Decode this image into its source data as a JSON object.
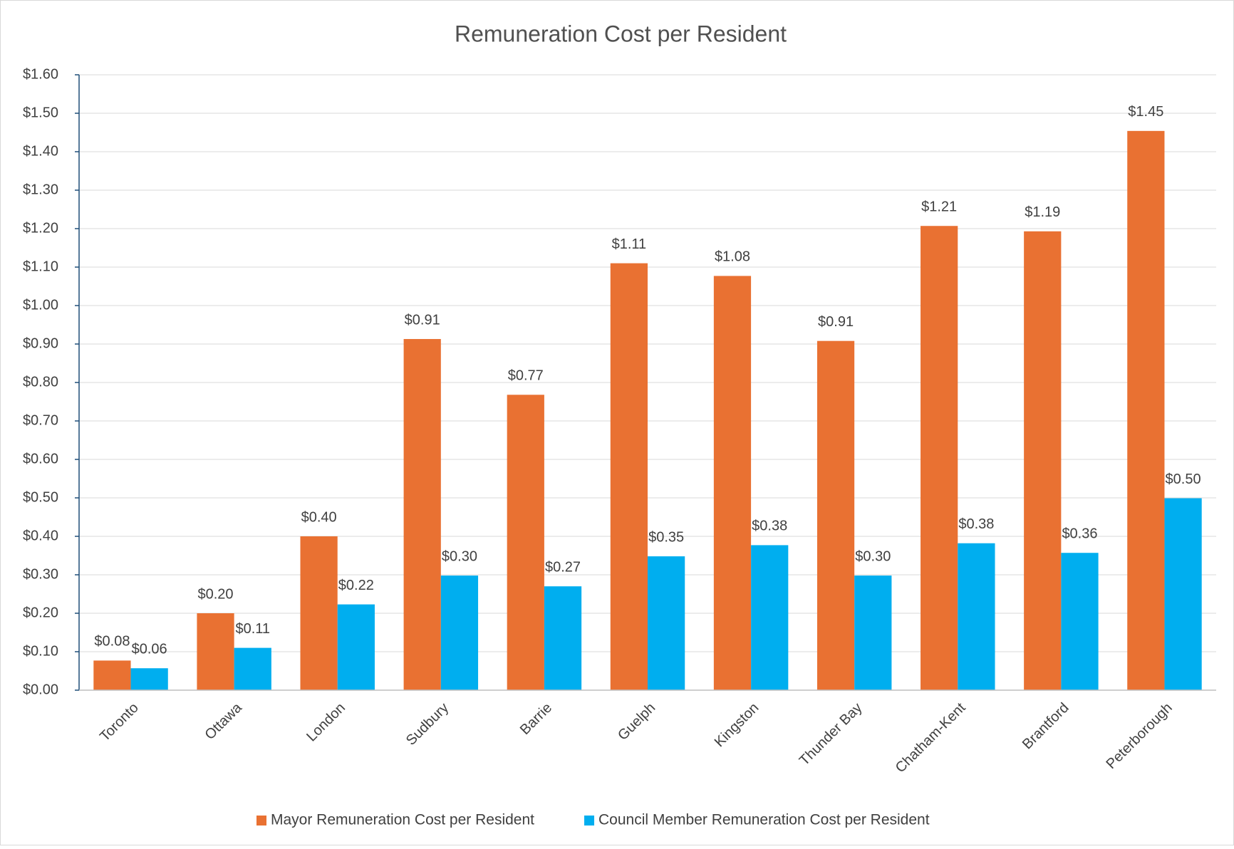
{
  "chart_data": {
    "type": "bar",
    "title": "Remuneration Cost per Resident",
    "categories": [
      "Toronto",
      "Ottawa",
      "London",
      "Sudbury",
      "Barrie",
      "Guelph",
      "Kingston",
      "Thunder Bay",
      "Chatham-Kent",
      "Brantford",
      "Peterborough"
    ],
    "series": [
      {
        "name": "Mayor Remuneration Cost per Resident",
        "color": "#e97132",
        "values": [
          0.077,
          0.2,
          0.4,
          0.913,
          0.768,
          1.11,
          1.077,
          0.908,
          1.207,
          1.193,
          1.454
        ],
        "value_labels": [
          "$0.08",
          "$0.20",
          "$0.40",
          "$0.91",
          "$0.77",
          "$1.11",
          "$1.08",
          "$0.91",
          "$1.21",
          "$1.19",
          "$1.45"
        ]
      },
      {
        "name": "Council Member Remuneration Cost per Resident",
        "color": "#00aeef",
        "values": [
          0.057,
          0.11,
          0.223,
          0.298,
          0.27,
          0.348,
          0.377,
          0.298,
          0.382,
          0.357,
          0.499
        ],
        "value_labels": [
          "$0.06",
          "$0.11",
          "$0.22",
          "$0.30",
          "$0.27",
          "$0.35",
          "$0.38",
          "$0.30",
          "$0.38",
          "$0.36",
          "$0.50"
        ]
      }
    ],
    "ylim": [
      0,
      1.6
    ],
    "yticks": [
      {
        "value": 0,
        "label": "$0.00"
      },
      {
        "value": 0.1,
        "label": "$0.10"
      },
      {
        "value": 0.2,
        "label": "$0.20"
      },
      {
        "value": 0.3,
        "label": "$0.30"
      },
      {
        "value": 0.4,
        "label": "$0.40"
      },
      {
        "value": 0.5,
        "label": "$0.50"
      },
      {
        "value": 0.6,
        "label": "$0.60"
      },
      {
        "value": 0.7,
        "label": "$0.70"
      },
      {
        "value": 0.8,
        "label": "$0.80"
      },
      {
        "value": 0.9,
        "label": "$0.90"
      },
      {
        "value": 1.0,
        "label": "$1.00"
      },
      {
        "value": 1.1,
        "label": "$1.10"
      },
      {
        "value": 1.2,
        "label": "$1.20"
      },
      {
        "value": 1.3,
        "label": "$1.30"
      },
      {
        "value": 1.4,
        "label": "$1.40"
      },
      {
        "value": 1.5,
        "label": "$1.50"
      },
      {
        "value": 1.6,
        "label": "$1.60"
      }
    ],
    "grid": true,
    "legend": "bottom"
  }
}
